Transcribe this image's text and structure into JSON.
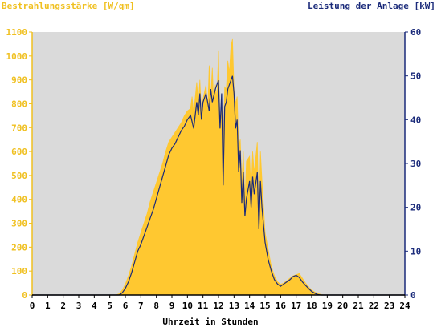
{
  "chart_data": {
    "type": "area",
    "title_left": "Bestrahlungsstärke [W/qm]",
    "title_right": "Leistung der Anlage [kW]",
    "xlabel": "Uhrzeit in Stunden",
    "xlim": [
      0,
      24
    ],
    "ylim_left": [
      0,
      1100
    ],
    "ylim_right": [
      0,
      60
    ],
    "x_ticks": [
      0,
      1,
      2,
      3,
      4,
      5,
      6,
      7,
      8,
      9,
      10,
      11,
      12,
      13,
      14,
      15,
      16,
      17,
      18,
      19,
      20,
      21,
      22,
      23,
      24
    ],
    "y_ticks_left": [
      0,
      100,
      200,
      300,
      400,
      500,
      600,
      700,
      800,
      900,
      1000,
      1100
    ],
    "y_ticks_right": [
      0,
      10,
      20,
      30,
      40,
      50,
      60
    ],
    "grid": false,
    "series": [
      {
        "name": "Bestrahlungsstärke",
        "axis": "left",
        "color": "#ffc830",
        "points": [
          [
            0,
            0
          ],
          [
            5.4,
            0
          ],
          [
            5.6,
            5
          ],
          [
            5.8,
            20
          ],
          [
            6.0,
            45
          ],
          [
            6.2,
            80
          ],
          [
            6.4,
            120
          ],
          [
            6.6,
            170
          ],
          [
            6.8,
            220
          ],
          [
            7.0,
            260
          ],
          [
            7.2,
            300
          ],
          [
            7.4,
            340
          ],
          [
            7.6,
            390
          ],
          [
            7.8,
            430
          ],
          [
            8.0,
            470
          ],
          [
            8.2,
            510
          ],
          [
            8.4,
            550
          ],
          [
            8.6,
            600
          ],
          [
            8.8,
            640
          ],
          [
            9.0,
            660
          ],
          [
            9.2,
            680
          ],
          [
            9.4,
            700
          ],
          [
            9.6,
            720
          ],
          [
            9.8,
            750
          ],
          [
            10.0,
            770
          ],
          [
            10.2,
            780
          ],
          [
            10.3,
            830
          ],
          [
            10.4,
            760
          ],
          [
            10.6,
            890
          ],
          [
            10.7,
            800
          ],
          [
            10.8,
            900
          ],
          [
            10.9,
            760
          ],
          [
            11.0,
            820
          ],
          [
            11.2,
            880
          ],
          [
            11.3,
            760
          ],
          [
            11.4,
            960
          ],
          [
            11.5,
            820
          ],
          [
            11.6,
            950
          ],
          [
            11.7,
            780
          ],
          [
            11.8,
            880
          ],
          [
            11.9,
            820
          ],
          [
            12.0,
            1020
          ],
          [
            12.1,
            700
          ],
          [
            12.2,
            820
          ],
          [
            12.3,
            610
          ],
          [
            12.4,
            870
          ],
          [
            12.5,
            860
          ],
          [
            12.6,
            980
          ],
          [
            12.7,
            930
          ],
          [
            12.8,
            1040
          ],
          [
            12.9,
            1070
          ],
          [
            13.0,
            860
          ],
          [
            13.1,
            800
          ],
          [
            13.2,
            830
          ],
          [
            13.3,
            620
          ],
          [
            13.4,
            650
          ],
          [
            13.5,
            470
          ],
          [
            13.6,
            600
          ],
          [
            13.7,
            390
          ],
          [
            13.8,
            560
          ],
          [
            14.0,
            580
          ],
          [
            14.1,
            420
          ],
          [
            14.2,
            600
          ],
          [
            14.3,
            510
          ],
          [
            14.5,
            640
          ],
          [
            14.6,
            300
          ],
          [
            14.7,
            600
          ],
          [
            14.8,
            480
          ],
          [
            15.0,
            260
          ],
          [
            15.2,
            190
          ],
          [
            15.4,
            120
          ],
          [
            15.6,
            80
          ],
          [
            15.8,
            55
          ],
          [
            16.0,
            45
          ],
          [
            16.2,
            50
          ],
          [
            16.4,
            60
          ],
          [
            16.6,
            70
          ],
          [
            16.8,
            80
          ],
          [
            17.0,
            85
          ],
          [
            17.2,
            90
          ],
          [
            17.4,
            70
          ],
          [
            17.6,
            50
          ],
          [
            17.8,
            35
          ],
          [
            18.0,
            20
          ],
          [
            18.2,
            12
          ],
          [
            18.4,
            6
          ],
          [
            18.6,
            2
          ],
          [
            18.8,
            0
          ],
          [
            24,
            0
          ]
        ]
      },
      {
        "name": "Leistung der Anlage",
        "axis": "right",
        "color": "#1a2a7a",
        "points": [
          [
            0,
            0
          ],
          [
            5.6,
            0
          ],
          [
            5.8,
            0.5
          ],
          [
            6.0,
            1.5
          ],
          [
            6.2,
            3
          ],
          [
            6.4,
            5
          ],
          [
            6.6,
            7.5
          ],
          [
            6.8,
            10
          ],
          [
            7.0,
            11.5
          ],
          [
            7.2,
            13.5
          ],
          [
            7.4,
            15.5
          ],
          [
            7.6,
            17.5
          ],
          [
            7.8,
            19.5
          ],
          [
            8.0,
            22
          ],
          [
            8.2,
            24.5
          ],
          [
            8.4,
            27
          ],
          [
            8.6,
            29.5
          ],
          [
            8.8,
            32
          ],
          [
            9.0,
            33.5
          ],
          [
            9.2,
            34.5
          ],
          [
            9.4,
            36
          ],
          [
            9.6,
            37.5
          ],
          [
            9.8,
            38.5
          ],
          [
            10.0,
            40
          ],
          [
            10.2,
            41
          ],
          [
            10.4,
            38
          ],
          [
            10.6,
            44
          ],
          [
            10.7,
            41
          ],
          [
            10.8,
            46
          ],
          [
            10.9,
            40
          ],
          [
            11.0,
            44
          ],
          [
            11.2,
            46
          ],
          [
            11.4,
            42
          ],
          [
            11.5,
            47
          ],
          [
            11.6,
            44
          ],
          [
            11.8,
            47
          ],
          [
            12.0,
            49
          ],
          [
            12.1,
            38
          ],
          [
            12.2,
            46
          ],
          [
            12.3,
            25
          ],
          [
            12.4,
            43
          ],
          [
            12.5,
            44
          ],
          [
            12.6,
            47
          ],
          [
            12.8,
            49
          ],
          [
            12.9,
            50
          ],
          [
            13.0,
            46
          ],
          [
            13.1,
            38
          ],
          [
            13.2,
            40
          ],
          [
            13.3,
            28
          ],
          [
            13.4,
            33
          ],
          [
            13.5,
            21
          ],
          [
            13.6,
            28
          ],
          [
            13.7,
            18
          ],
          [
            13.8,
            22
          ],
          [
            14.0,
            26
          ],
          [
            14.1,
            20
          ],
          [
            14.2,
            27
          ],
          [
            14.3,
            23
          ],
          [
            14.5,
            28
          ],
          [
            14.6,
            15
          ],
          [
            14.7,
            26
          ],
          [
            14.8,
            20
          ],
          [
            15.0,
            12
          ],
          [
            15.2,
            8
          ],
          [
            15.4,
            5.5
          ],
          [
            15.6,
            3.5
          ],
          [
            15.8,
            2.5
          ],
          [
            16.0,
            2
          ],
          [
            16.2,
            2.5
          ],
          [
            16.4,
            3
          ],
          [
            16.6,
            3.5
          ],
          [
            16.8,
            4.2
          ],
          [
            17.0,
            4.5
          ],
          [
            17.2,
            4
          ],
          [
            17.4,
            3
          ],
          [
            17.6,
            2.2
          ],
          [
            17.8,
            1.5
          ],
          [
            18.0,
            0.8
          ],
          [
            18.2,
            0.4
          ],
          [
            18.4,
            0.1
          ],
          [
            18.6,
            0
          ],
          [
            24,
            0
          ]
        ]
      }
    ]
  }
}
